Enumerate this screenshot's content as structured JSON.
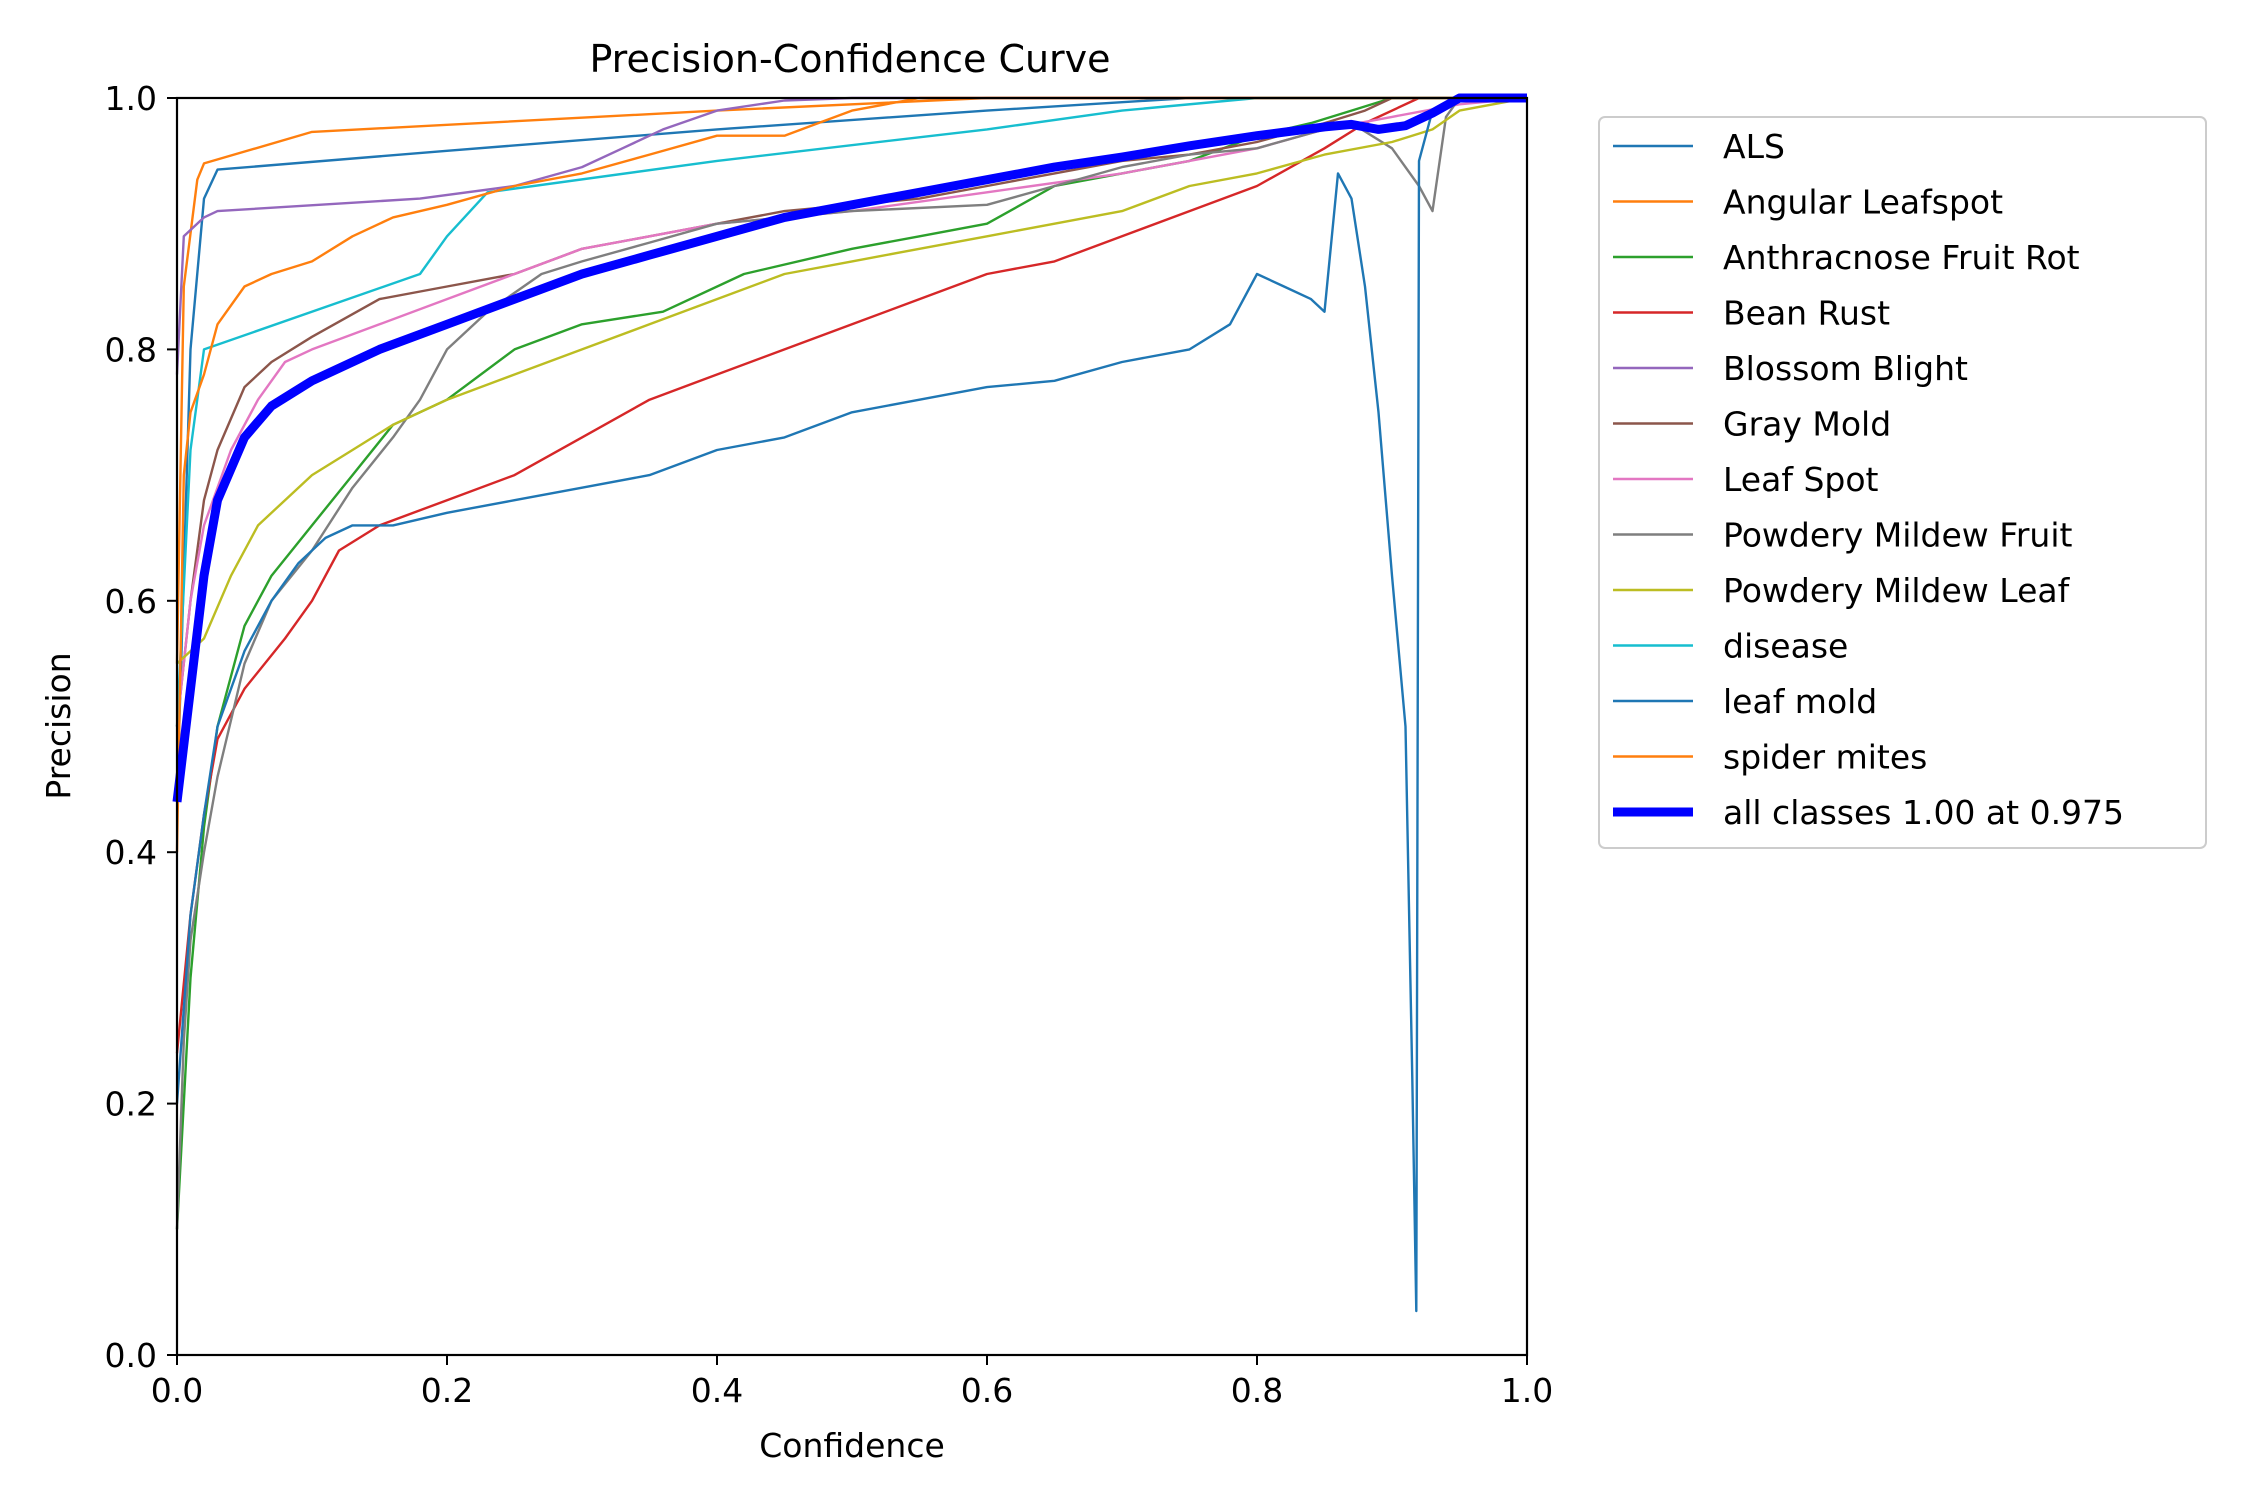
{
  "chart_data": {
    "type": "line",
    "title": "Precision-Confidence Curve",
    "xlabel": "Confidence",
    "ylabel": "Precision",
    "xlim": [
      0.0,
      1.0
    ],
    "ylim": [
      0.0,
      1.0
    ],
    "xticks": [
      0.0,
      0.2,
      0.4,
      0.6,
      0.8,
      1.0
    ],
    "yticks": [
      0.0,
      0.2,
      0.4,
      0.6,
      0.8,
      1.0
    ],
    "xtick_labels": [
      "0.0",
      "0.2",
      "0.4",
      "0.6",
      "0.8",
      "1.0"
    ],
    "ytick_labels": [
      "0.0",
      "0.2",
      "0.4",
      "0.6",
      "0.8",
      "1.0"
    ],
    "grid": false,
    "legend_position": "outside-right-top",
    "series": [
      {
        "name": "ALS",
        "color": "#1f77b4",
        "points": [
          [
            0,
            0.44
          ],
          [
            0.01,
            0.8
          ],
          [
            0.02,
            0.92
          ],
          [
            0.03,
            0.943
          ],
          [
            0.2,
            0.958
          ],
          [
            0.4,
            0.975
          ],
          [
            0.6,
            0.99
          ],
          [
            0.75,
            1.0
          ],
          [
            1.0,
            1.0
          ]
        ]
      },
      {
        "name": "Angular Leafspot",
        "color": "#ff7f0e",
        "points": [
          [
            0,
            0.55
          ],
          [
            0.005,
            0.85
          ],
          [
            0.015,
            0.935
          ],
          [
            0.02,
            0.948
          ],
          [
            0.1,
            0.973
          ],
          [
            0.4,
            0.99
          ],
          [
            0.6,
            1.0
          ],
          [
            1.0,
            1.0
          ]
        ]
      },
      {
        "name": "Anthracnose Fruit Rot",
        "color": "#2ca02c",
        "points": [
          [
            0,
            0.1
          ],
          [
            0.01,
            0.3
          ],
          [
            0.02,
            0.42
          ],
          [
            0.03,
            0.5
          ],
          [
            0.05,
            0.58
          ],
          [
            0.07,
            0.62
          ],
          [
            0.1,
            0.66
          ],
          [
            0.13,
            0.7
          ],
          [
            0.16,
            0.74
          ],
          [
            0.2,
            0.76
          ],
          [
            0.25,
            0.8
          ],
          [
            0.3,
            0.82
          ],
          [
            0.36,
            0.83
          ],
          [
            0.42,
            0.86
          ],
          [
            0.5,
            0.88
          ],
          [
            0.55,
            0.89
          ],
          [
            0.6,
            0.9
          ],
          [
            0.65,
            0.93
          ],
          [
            0.7,
            0.94
          ],
          [
            0.75,
            0.95
          ],
          [
            0.8,
            0.97
          ],
          [
            0.84,
            0.98
          ],
          [
            0.87,
            0.99
          ],
          [
            0.9,
            1.0
          ],
          [
            1.0,
            1.0
          ]
        ]
      },
      {
        "name": "Bean Rust",
        "color": "#d62728",
        "points": [
          [
            0,
            0.24
          ],
          [
            0.01,
            0.35
          ],
          [
            0.02,
            0.43
          ],
          [
            0.03,
            0.49
          ],
          [
            0.05,
            0.53
          ],
          [
            0.08,
            0.57
          ],
          [
            0.1,
            0.6
          ],
          [
            0.12,
            0.64
          ],
          [
            0.15,
            0.66
          ],
          [
            0.2,
            0.68
          ],
          [
            0.25,
            0.7
          ],
          [
            0.3,
            0.73
          ],
          [
            0.35,
            0.76
          ],
          [
            0.4,
            0.78
          ],
          [
            0.45,
            0.8
          ],
          [
            0.5,
            0.82
          ],
          [
            0.55,
            0.84
          ],
          [
            0.6,
            0.86
          ],
          [
            0.65,
            0.87
          ],
          [
            0.7,
            0.89
          ],
          [
            0.75,
            0.91
          ],
          [
            0.8,
            0.93
          ],
          [
            0.85,
            0.96
          ],
          [
            0.88,
            0.98
          ],
          [
            0.92,
            1.0
          ],
          [
            1.0,
            1.0
          ]
        ]
      },
      {
        "name": "Blossom Blight",
        "color": "#9467bd",
        "points": [
          [
            0,
            0.78
          ],
          [
            0.005,
            0.89
          ],
          [
            0.02,
            0.905
          ],
          [
            0.03,
            0.91
          ],
          [
            0.18,
            0.92
          ],
          [
            0.25,
            0.93
          ],
          [
            0.3,
            0.945
          ],
          [
            0.33,
            0.96
          ],
          [
            0.36,
            0.975
          ],
          [
            0.4,
            0.99
          ],
          [
            0.45,
            0.998
          ],
          [
            0.5,
            1.0
          ],
          [
            1.0,
            1.0
          ]
        ]
      },
      {
        "name": "Gray Mold",
        "color": "#8c564b",
        "points": [
          [
            0,
            0.5
          ],
          [
            0.01,
            0.6
          ],
          [
            0.02,
            0.68
          ],
          [
            0.03,
            0.72
          ],
          [
            0.05,
            0.77
          ],
          [
            0.07,
            0.79
          ],
          [
            0.1,
            0.81
          ],
          [
            0.15,
            0.84
          ],
          [
            0.2,
            0.85
          ],
          [
            0.25,
            0.86
          ],
          [
            0.3,
            0.88
          ],
          [
            0.35,
            0.89
          ],
          [
            0.4,
            0.9
          ],
          [
            0.45,
            0.91
          ],
          [
            0.5,
            0.915
          ],
          [
            0.55,
            0.92
          ],
          [
            0.6,
            0.93
          ],
          [
            0.65,
            0.94
          ],
          [
            0.7,
            0.95
          ],
          [
            0.75,
            0.955
          ],
          [
            0.8,
            0.965
          ],
          [
            0.85,
            0.98
          ],
          [
            0.88,
            0.99
          ],
          [
            0.9,
            1.0
          ],
          [
            1.0,
            1.0
          ]
        ]
      },
      {
        "name": "Leaf Spot",
        "color": "#e377c2",
        "points": [
          [
            0,
            0.5
          ],
          [
            0.01,
            0.6
          ],
          [
            0.02,
            0.66
          ],
          [
            0.04,
            0.72
          ],
          [
            0.06,
            0.76
          ],
          [
            0.08,
            0.79
          ],
          [
            0.1,
            0.8
          ],
          [
            0.15,
            0.82
          ],
          [
            0.2,
            0.84
          ],
          [
            0.25,
            0.86
          ],
          [
            0.3,
            0.88
          ],
          [
            0.35,
            0.89
          ],
          [
            0.4,
            0.9
          ],
          [
            0.5,
            0.91
          ],
          [
            0.6,
            0.925
          ],
          [
            0.7,
            0.94
          ],
          [
            0.75,
            0.95
          ],
          [
            0.8,
            0.96
          ],
          [
            0.85,
            0.975
          ],
          [
            0.9,
            0.985
          ],
          [
            0.95,
            0.995
          ],
          [
            1.0,
            1.0
          ]
        ]
      },
      {
        "name": "Powdery Mildew Fruit",
        "color": "#7f7f7f",
        "points": [
          [
            0,
            0.1
          ],
          [
            0.005,
            0.25
          ],
          [
            0.01,
            0.33
          ],
          [
            0.02,
            0.4
          ],
          [
            0.03,
            0.46
          ],
          [
            0.05,
            0.55
          ],
          [
            0.07,
            0.6
          ],
          [
            0.1,
            0.64
          ],
          [
            0.13,
            0.69
          ],
          [
            0.16,
            0.73
          ],
          [
            0.18,
            0.76
          ],
          [
            0.2,
            0.8
          ],
          [
            0.23,
            0.83
          ],
          [
            0.27,
            0.86
          ],
          [
            0.3,
            0.87
          ],
          [
            0.35,
            0.885
          ],
          [
            0.4,
            0.9
          ],
          [
            0.5,
            0.91
          ],
          [
            0.6,
            0.915
          ],
          [
            0.65,
            0.93
          ],
          [
            0.7,
            0.945
          ],
          [
            0.75,
            0.955
          ],
          [
            0.8,
            0.96
          ],
          [
            0.85,
            0.975
          ],
          [
            0.87,
            0.98
          ],
          [
            0.9,
            0.96
          ],
          [
            0.92,
            0.93
          ],
          [
            0.93,
            0.91
          ],
          [
            0.94,
            0.985
          ],
          [
            0.95,
            1.0
          ],
          [
            1.0,
            1.0
          ]
        ]
      },
      {
        "name": "Powdery Mildew Leaf",
        "color": "#bcbd22",
        "points": [
          [
            0,
            0.55
          ],
          [
            0.01,
            0.56
          ],
          [
            0.02,
            0.57
          ],
          [
            0.04,
            0.62
          ],
          [
            0.06,
            0.66
          ],
          [
            0.08,
            0.68
          ],
          [
            0.1,
            0.7
          ],
          [
            0.13,
            0.72
          ],
          [
            0.16,
            0.74
          ],
          [
            0.2,
            0.76
          ],
          [
            0.25,
            0.78
          ],
          [
            0.3,
            0.8
          ],
          [
            0.35,
            0.82
          ],
          [
            0.4,
            0.84
          ],
          [
            0.45,
            0.86
          ],
          [
            0.5,
            0.87
          ],
          [
            0.55,
            0.88
          ],
          [
            0.6,
            0.89
          ],
          [
            0.65,
            0.9
          ],
          [
            0.7,
            0.91
          ],
          [
            0.75,
            0.93
          ],
          [
            0.8,
            0.94
          ],
          [
            0.85,
            0.955
          ],
          [
            0.9,
            0.965
          ],
          [
            0.93,
            0.975
          ],
          [
            0.95,
            0.99
          ],
          [
            1.0,
            1.0
          ]
        ]
      },
      {
        "name": "disease",
        "color": "#17becf",
        "points": [
          [
            0,
            0.5
          ],
          [
            0.01,
            0.72
          ],
          [
            0.02,
            0.8
          ],
          [
            0.18,
            0.86
          ],
          [
            0.2,
            0.89
          ],
          [
            0.23,
            0.925
          ],
          [
            0.4,
            0.95
          ],
          [
            0.6,
            0.975
          ],
          [
            0.7,
            0.99
          ],
          [
            0.8,
            1.0
          ],
          [
            1.0,
            1.0
          ]
        ]
      },
      {
        "name": "leaf mold",
        "color": "#1f77b4",
        "points": [
          [
            0,
            0.2
          ],
          [
            0.01,
            0.35
          ],
          [
            0.02,
            0.43
          ],
          [
            0.03,
            0.5
          ],
          [
            0.05,
            0.56
          ],
          [
            0.07,
            0.6
          ],
          [
            0.09,
            0.63
          ],
          [
            0.11,
            0.65
          ],
          [
            0.13,
            0.66
          ],
          [
            0.16,
            0.66
          ],
          [
            0.2,
            0.67
          ],
          [
            0.25,
            0.68
          ],
          [
            0.3,
            0.69
          ],
          [
            0.35,
            0.7
          ],
          [
            0.4,
            0.72
          ],
          [
            0.45,
            0.73
          ],
          [
            0.5,
            0.75
          ],
          [
            0.55,
            0.76
          ],
          [
            0.6,
            0.77
          ],
          [
            0.65,
            0.775
          ],
          [
            0.7,
            0.79
          ],
          [
            0.75,
            0.8
          ],
          [
            0.78,
            0.82
          ],
          [
            0.8,
            0.86
          ],
          [
            0.82,
            0.85
          ],
          [
            0.84,
            0.84
          ],
          [
            0.85,
            0.83
          ],
          [
            0.86,
            0.94
          ],
          [
            0.87,
            0.92
          ],
          [
            0.88,
            0.85
          ],
          [
            0.89,
            0.75
          ],
          [
            0.9,
            0.62
          ],
          [
            0.91,
            0.5
          ],
          [
            0.915,
            0.22
          ],
          [
            0.918,
            0.035
          ],
          [
            0.92,
            0.95
          ],
          [
            0.93,
            0.99
          ],
          [
            0.95,
            1.0
          ],
          [
            1.0,
            1.0
          ]
        ]
      },
      {
        "name": "spider mites",
        "color": "#ff7f0e",
        "points": [
          [
            0,
            0.4
          ],
          [
            0.005,
            0.7
          ],
          [
            0.01,
            0.75
          ],
          [
            0.02,
            0.78
          ],
          [
            0.03,
            0.82
          ],
          [
            0.05,
            0.85
          ],
          [
            0.07,
            0.86
          ],
          [
            0.1,
            0.87
          ],
          [
            0.13,
            0.89
          ],
          [
            0.16,
            0.905
          ],
          [
            0.2,
            0.915
          ],
          [
            0.25,
            0.93
          ],
          [
            0.3,
            0.94
          ],
          [
            0.35,
            0.955
          ],
          [
            0.4,
            0.97
          ],
          [
            0.45,
            0.97
          ],
          [
            0.5,
            0.99
          ],
          [
            0.55,
            1.0
          ],
          [
            1.0,
            1.0
          ]
        ]
      },
      {
        "name": "all classes 1.00 at 0.975",
        "color": "#0000ff",
        "bold": true,
        "points": [
          [
            0,
            0.44
          ],
          [
            0.01,
            0.53
          ],
          [
            0.02,
            0.62
          ],
          [
            0.03,
            0.68
          ],
          [
            0.05,
            0.73
          ],
          [
            0.07,
            0.755
          ],
          [
            0.1,
            0.775
          ],
          [
            0.15,
            0.8
          ],
          [
            0.2,
            0.82
          ],
          [
            0.25,
            0.84
          ],
          [
            0.3,
            0.86
          ],
          [
            0.35,
            0.875
          ],
          [
            0.4,
            0.89
          ],
          [
            0.45,
            0.905
          ],
          [
            0.5,
            0.915
          ],
          [
            0.55,
            0.925
          ],
          [
            0.6,
            0.935
          ],
          [
            0.65,
            0.945
          ],
          [
            0.7,
            0.953
          ],
          [
            0.75,
            0.962
          ],
          [
            0.8,
            0.97
          ],
          [
            0.85,
            0.977
          ],
          [
            0.87,
            0.979
          ],
          [
            0.89,
            0.975
          ],
          [
            0.91,
            0.978
          ],
          [
            0.93,
            0.988
          ],
          [
            0.95,
            1.0
          ],
          [
            0.975,
            1.0
          ],
          [
            1.0,
            1.0
          ]
        ]
      }
    ]
  }
}
